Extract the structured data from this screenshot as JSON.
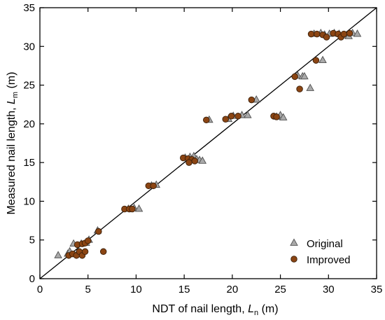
{
  "chart_data": {
    "type": "scatter",
    "xlabel": {
      "prefix": "NDT of nail length, ",
      "sym": "L",
      "sub": "n",
      "suffix": " (m)"
    },
    "ylabel": {
      "prefix": "Measured nail length, ",
      "sym": "L",
      "sub": "m",
      "suffix": " (m)"
    },
    "xlim": [
      0,
      35
    ],
    "ylim": [
      0,
      35
    ],
    "xticks": [
      0,
      5,
      10,
      15,
      20,
      25,
      30,
      35
    ],
    "yticks": [
      0,
      5,
      10,
      15,
      20,
      25,
      30,
      35
    ],
    "reference_line": [
      [
        0,
        0
      ],
      [
        35,
        35
      ]
    ],
    "legend_position": "bottom-right",
    "series": [
      {
        "name": "Original",
        "marker": "triangle",
        "color": "#a9a9a9",
        "points": [
          [
            1.9,
            3.0
          ],
          [
            2.9,
            3.2
          ],
          [
            3.1,
            3.5
          ],
          [
            3.5,
            4.5
          ],
          [
            4.0,
            3.5
          ],
          [
            4.3,
            4.5
          ],
          [
            4.8,
            4.6
          ],
          [
            5.1,
            5.0
          ],
          [
            6.0,
            6.2
          ],
          [
            9.2,
            9.0
          ],
          [
            9.8,
            9.1
          ],
          [
            10.3,
            9.0
          ],
          [
            11.6,
            12.0
          ],
          [
            12.1,
            12.1
          ],
          [
            15.1,
            15.6
          ],
          [
            15.6,
            15.7
          ],
          [
            16.0,
            15.8
          ],
          [
            16.3,
            15.4
          ],
          [
            16.6,
            15.3
          ],
          [
            16.9,
            15.2
          ],
          [
            17.6,
            20.5
          ],
          [
            19.6,
            20.6
          ],
          [
            20.1,
            21.0
          ],
          [
            21.0,
            21.1
          ],
          [
            21.6,
            21.1
          ],
          [
            22.5,
            23.1
          ],
          [
            24.6,
            20.9
          ],
          [
            25.0,
            21.1
          ],
          [
            25.3,
            20.8
          ],
          [
            26.8,
            26.2
          ],
          [
            27.3,
            26.1
          ],
          [
            27.5,
            26.1
          ],
          [
            28.1,
            24.6
          ],
          [
            29.4,
            28.2
          ],
          [
            28.5,
            31.6
          ],
          [
            29.2,
            31.7
          ],
          [
            29.6,
            31.5
          ],
          [
            30.1,
            31.6
          ],
          [
            30.6,
            31.7
          ],
          [
            31.1,
            31.6
          ],
          [
            31.7,
            31.4
          ],
          [
            32.1,
            31.3
          ],
          [
            32.5,
            31.7
          ],
          [
            33.0,
            31.6
          ]
        ]
      },
      {
        "name": "Improved",
        "marker": "circle",
        "color": "#8b4513",
        "points": [
          [
            3.0,
            3.0
          ],
          [
            3.4,
            3.2
          ],
          [
            3.8,
            3.0
          ],
          [
            4.1,
            3.5
          ],
          [
            4.4,
            3.0
          ],
          [
            4.7,
            3.5
          ],
          [
            3.9,
            4.4
          ],
          [
            4.4,
            4.5
          ],
          [
            4.7,
            4.6
          ],
          [
            5.0,
            4.9
          ],
          [
            6.1,
            6.1
          ],
          [
            6.6,
            3.5
          ],
          [
            8.8,
            9.0
          ],
          [
            9.3,
            9.0
          ],
          [
            9.6,
            9.0
          ],
          [
            11.3,
            12.0
          ],
          [
            11.8,
            12.0
          ],
          [
            14.9,
            15.6
          ],
          [
            15.4,
            15.5
          ],
          [
            15.8,
            15.4
          ],
          [
            16.1,
            15.2
          ],
          [
            15.5,
            15.0
          ],
          [
            17.3,
            20.5
          ],
          [
            19.3,
            20.6
          ],
          [
            19.9,
            21.0
          ],
          [
            20.6,
            21.0
          ],
          [
            22.0,
            23.1
          ],
          [
            24.3,
            21.0
          ],
          [
            24.6,
            20.9
          ],
          [
            26.5,
            26.1
          ],
          [
            27.0,
            24.5
          ],
          [
            28.7,
            28.2
          ],
          [
            28.2,
            31.6
          ],
          [
            28.8,
            31.6
          ],
          [
            29.4,
            31.5
          ],
          [
            29.8,
            31.2
          ],
          [
            30.5,
            31.7
          ],
          [
            31.0,
            31.6
          ],
          [
            31.3,
            31.2
          ],
          [
            31.6,
            31.6
          ],
          [
            32.2,
            31.7
          ]
        ]
      }
    ]
  }
}
